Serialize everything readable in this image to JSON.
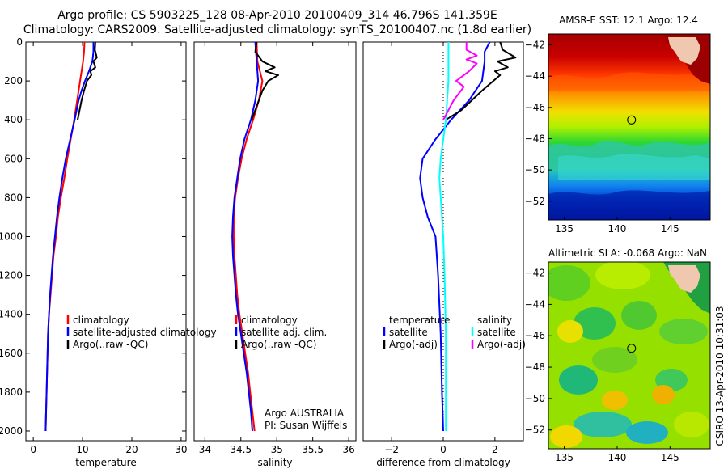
{
  "header": {
    "line1": "Argo profile: CS 5903225_128 08-Apr-2010 20100409_314 46.796S 141.359E",
    "line2": "Climatology: CARS2009. Satellite-adjusted climatology: synTS_20100407.nc (1.8d earlier)"
  },
  "credit": "CSIRO 13-Apr-2010 10:31:03",
  "colors": {
    "climatology": "#ff0000",
    "satellite": "#0000ff",
    "argo": "#000000",
    "temp_diff_argo": "#000000",
    "sal_satellite": "#00ffff",
    "sal_argo": "#ff00ff",
    "marker": "#000000"
  },
  "chart_data": [
    {
      "id": "temperature",
      "type": "line",
      "xlabel": "temperature",
      "ylabel": "",
      "xlim": [
        -1.5,
        31
      ],
      "ylim": [
        2050,
        0
      ],
      "xticks": [
        0,
        10,
        20,
        30
      ],
      "yticks": [
        0,
        200,
        400,
        600,
        800,
        1000,
        1200,
        1400,
        1600,
        1800,
        2000
      ],
      "legend": {
        "position": "lower-right",
        "entries": [
          "climatology",
          "satellite-adjusted climatology",
          "Argo(..raw -QC)"
        ]
      },
      "series": [
        {
          "name": "climatology",
          "color": "#ff0000",
          "points": [
            [
              10.4,
              0
            ],
            [
              10.3,
              50
            ],
            [
              10.1,
              100
            ],
            [
              9.5,
              200
            ],
            [
              8.9,
              300
            ],
            [
              8.3,
              400
            ],
            [
              7.6,
              500
            ],
            [
              6.9,
              600
            ],
            [
              6.3,
              700
            ],
            [
              5.6,
              800
            ],
            [
              5.0,
              900
            ],
            [
              4.6,
              1000
            ],
            [
              4.1,
              1100
            ],
            [
              3.8,
              1200
            ],
            [
              3.5,
              1300
            ],
            [
              3.2,
              1400
            ],
            [
              3.0,
              1500
            ],
            [
              2.9,
              1600
            ],
            [
              2.8,
              1700
            ],
            [
              2.7,
              1800
            ],
            [
              2.6,
              1900
            ],
            [
              2.5,
              2000
            ]
          ]
        },
        {
          "name": "satellite-adjusted climatology",
          "color": "#0000ff",
          "points": [
            [
              12.2,
              0
            ],
            [
              12.2,
              50
            ],
            [
              12.0,
              100
            ],
            [
              11.3,
              150
            ],
            [
              10.5,
              200
            ],
            [
              9.8,
              250
            ],
            [
              9.2,
              300
            ],
            [
              8.4,
              400
            ],
            [
              7.5,
              500
            ],
            [
              6.6,
              600
            ],
            [
              5.9,
              700
            ],
            [
              5.3,
              800
            ],
            [
              4.8,
              900
            ],
            [
              4.4,
              1000
            ],
            [
              4.0,
              1100
            ],
            [
              3.7,
              1200
            ],
            [
              3.4,
              1300
            ],
            [
              3.2,
              1400
            ],
            [
              3.0,
              1500
            ],
            [
              2.9,
              1600
            ],
            [
              2.8,
              1700
            ],
            [
              2.7,
              1800
            ],
            [
              2.6,
              1900
            ],
            [
              2.5,
              2000
            ]
          ]
        },
        {
          "name": "Argo(..raw -QC)",
          "color": "#000000",
          "points": [
            [
              12.6,
              0
            ],
            [
              12.5,
              40
            ],
            [
              12.9,
              80
            ],
            [
              12.2,
              100
            ],
            [
              12.6,
              130
            ],
            [
              11.6,
              150
            ],
            [
              11.8,
              170
            ],
            [
              10.9,
              200
            ],
            [
              10.3,
              250
            ],
            [
              9.8,
              300
            ],
            [
              9.0,
              400
            ]
          ]
        }
      ]
    },
    {
      "id": "salinity",
      "type": "line",
      "xlabel": "salinity",
      "ylabel": "",
      "xlim": [
        33.85,
        36.1
      ],
      "ylim": [
        2050,
        0
      ],
      "xticks": [
        34,
        34.5,
        35,
        35.5,
        36
      ],
      "yticks": [],
      "legend": {
        "position": "lower-right",
        "entries": [
          "climatology",
          "satellite adj. clim.",
          "Argo(..raw -QC)"
        ]
      },
      "annotation": [
        "Argo AUSTRALIA",
        "PI: Susan Wijffels"
      ],
      "series": [
        {
          "name": "climatology",
          "color": "#ff0000",
          "points": [
            [
              34.72,
              0
            ],
            [
              34.73,
              100
            ],
            [
              34.8,
              200
            ],
            [
              34.75,
              300
            ],
            [
              34.67,
              400
            ],
            [
              34.58,
              500
            ],
            [
              34.51,
              600
            ],
            [
              34.46,
              700
            ],
            [
              34.42,
              800
            ],
            [
              34.4,
              900
            ],
            [
              34.4,
              1000
            ],
            [
              34.41,
              1100
            ],
            [
              34.43,
              1200
            ],
            [
              34.45,
              1300
            ],
            [
              34.48,
              1400
            ],
            [
              34.52,
              1500
            ],
            [
              34.56,
              1600
            ],
            [
              34.6,
              1700
            ],
            [
              34.63,
              1800
            ],
            [
              34.66,
              1900
            ],
            [
              34.69,
              2000
            ]
          ]
        },
        {
          "name": "satellite adj. clim.",
          "color": "#0000ff",
          "points": [
            [
              34.7,
              0
            ],
            [
              34.72,
              100
            ],
            [
              34.74,
              200
            ],
            [
              34.7,
              300
            ],
            [
              34.64,
              400
            ],
            [
              34.55,
              500
            ],
            [
              34.49,
              600
            ],
            [
              34.45,
              700
            ],
            [
              34.41,
              800
            ],
            [
              34.39,
              900
            ],
            [
              34.38,
              1000
            ],
            [
              34.39,
              1100
            ],
            [
              34.41,
              1200
            ],
            [
              34.43,
              1300
            ],
            [
              34.46,
              1400
            ],
            [
              34.5,
              1500
            ],
            [
              34.54,
              1600
            ],
            [
              34.58,
              1700
            ],
            [
              34.61,
              1800
            ],
            [
              34.64,
              1900
            ],
            [
              34.66,
              2000
            ]
          ]
        },
        {
          "name": "Argo(..raw -QC)",
          "color": "#000000",
          "points": [
            [
              34.72,
              0
            ],
            [
              34.7,
              50
            ],
            [
              34.8,
              100
            ],
            [
              34.97,
              130
            ],
            [
              34.84,
              150
            ],
            [
              35.02,
              170
            ],
            [
              34.88,
              200
            ],
            [
              34.8,
              250
            ],
            [
              34.75,
              300
            ],
            [
              34.65,
              400
            ]
          ]
        }
      ]
    },
    {
      "id": "difference",
      "type": "line",
      "xlabel": "difference from climatology",
      "ylabel": "",
      "xlim": [
        -3.1,
        3.1
      ],
      "ylim": [
        2050,
        0
      ],
      "xticks": [
        -2,
        0,
        2
      ],
      "yticks": [],
      "legend": {
        "position": "lower-center",
        "groups": [
          {
            "title": "temperature",
            "entries": [
              "satellite",
              "Argo(-adj)"
            ]
          },
          {
            "title": "salinity",
            "entries": [
              "satellite",
              "Argo(-adj)"
            ]
          }
        ]
      },
      "series": [
        {
          "name": "temperature satellite",
          "color": "#0000ff",
          "points": [
            [
              1.8,
              0
            ],
            [
              1.6,
              50
            ],
            [
              1.6,
              100
            ],
            [
              1.5,
              200
            ],
            [
              1.0,
              300
            ],
            [
              0.3,
              400
            ],
            [
              -0.3,
              500
            ],
            [
              -0.8,
              600
            ],
            [
              -0.9,
              700
            ],
            [
              -0.8,
              800
            ],
            [
              -0.6,
              900
            ],
            [
              -0.3,
              1000
            ],
            [
              -0.2,
              1200
            ],
            [
              -0.1,
              1500
            ],
            [
              -0.05,
              1800
            ],
            [
              0,
              2000
            ]
          ]
        },
        {
          "name": "temperature Argo(-adj)",
          "color": "#000000",
          "points": [
            [
              2.2,
              0
            ],
            [
              2.3,
              40
            ],
            [
              2.8,
              80
            ],
            [
              2.1,
              100
            ],
            [
              2.5,
              130
            ],
            [
              2.0,
              150
            ],
            [
              2.2,
              170
            ],
            [
              1.5,
              250
            ],
            [
              0.7,
              350
            ],
            [
              0.1,
              400
            ]
          ]
        },
        {
          "name": "salinity satellite",
          "color": "#00ffff",
          "points": [
            [
              0.2,
              0
            ],
            [
              0.2,
              100
            ],
            [
              0.2,
              200
            ],
            [
              0.15,
              300
            ],
            [
              0.1,
              400
            ],
            [
              0.0,
              500
            ],
            [
              -0.1,
              600
            ],
            [
              -0.15,
              700
            ],
            [
              -0.1,
              800
            ],
            [
              -0.05,
              900
            ],
            [
              0.0,
              1000
            ],
            [
              0.05,
              1200
            ],
            [
              0.1,
              1500
            ],
            [
              0.1,
              1800
            ],
            [
              0.1,
              2000
            ]
          ]
        },
        {
          "name": "salinity Argo(-adj)",
          "color": "#ff00ff",
          "points": [
            [
              0.9,
              0
            ],
            [
              0.9,
              40
            ],
            [
              1.3,
              70
            ],
            [
              0.9,
              90
            ],
            [
              1.3,
              110
            ],
            [
              1.0,
              150
            ],
            [
              0.5,
              200
            ],
            [
              0.8,
              230
            ],
            [
              0.4,
              300
            ],
            [
              0.0,
              400
            ]
          ]
        }
      ]
    },
    {
      "id": "sst-map",
      "type": "heatmap",
      "title": "AMSR-E SST: 12.1 Argo: 12.4",
      "xlim": [
        133.5,
        148.8
      ],
      "ylim": [
        -53.2,
        -41.3
      ],
      "xticks": [
        135,
        140,
        145
      ],
      "yticks": [
        -42,
        -44,
        -46,
        -48,
        -50,
        -52
      ],
      "marker": {
        "lon": 141.36,
        "lat": -46.8
      }
    },
    {
      "id": "sla-map",
      "type": "heatmap",
      "title": "Altimetric SLA: -0.068 Argo: NaN",
      "xlim": [
        133.5,
        148.8
      ],
      "ylim": [
        -53.2,
        -41.3
      ],
      "xticks": [
        135,
        140,
        145
      ],
      "yticks": [
        -42,
        -44,
        -46,
        -48,
        -50,
        -52
      ],
      "marker": {
        "lon": 141.36,
        "lat": -46.8
      }
    }
  ]
}
